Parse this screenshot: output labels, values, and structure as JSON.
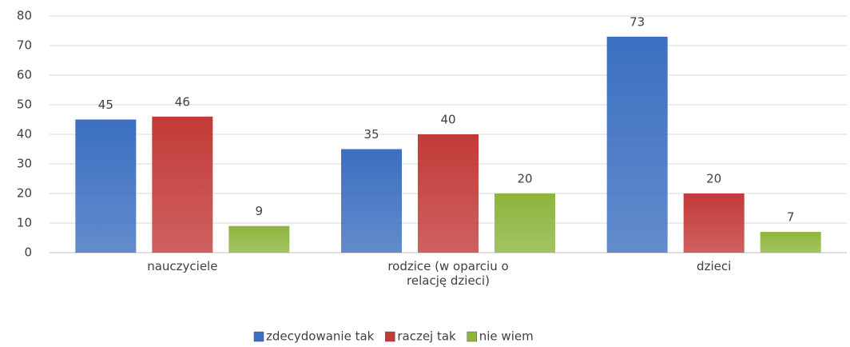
{
  "chart_data": {
    "type": "bar",
    "categories": [
      "nauczyciele",
      "rodzice (w oparciu o relację dzieci)",
      "dzieci"
    ],
    "series": [
      {
        "name": "zdecydowanie tak",
        "color": "#3b6fc0",
        "values": [
          45,
          35,
          73
        ]
      },
      {
        "name": "raczej tak",
        "color": "#c23a38",
        "values": [
          46,
          40,
          20
        ]
      },
      {
        "name": "nie wiem",
        "color": "#8db53c",
        "values": [
          9,
          20,
          7
        ]
      }
    ],
    "ylim": [
      0,
      80
    ],
    "yticks": [
      0,
      10,
      20,
      30,
      40,
      50,
      60,
      70,
      80
    ],
    "grid": true,
    "legend": "bottom"
  }
}
